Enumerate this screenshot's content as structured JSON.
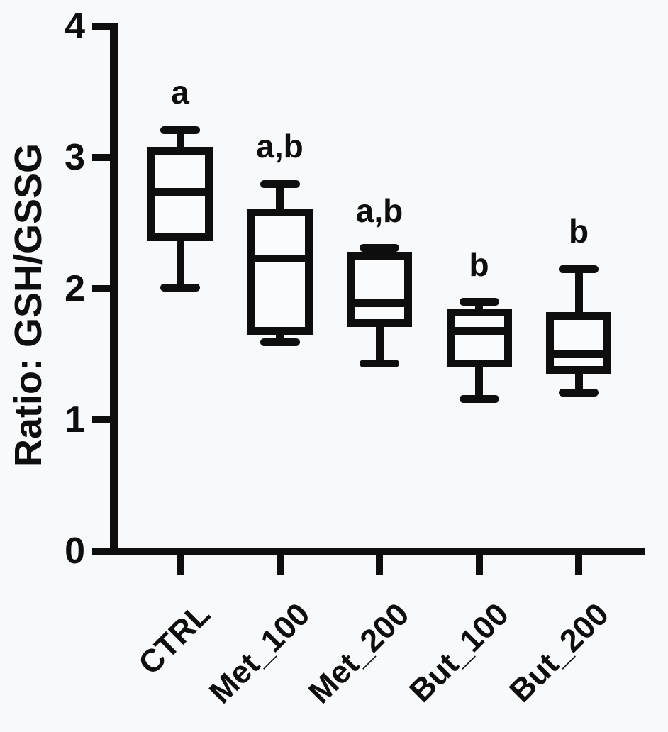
{
  "chart_data": {
    "type": "box",
    "title": "",
    "xlabel": "",
    "ylabel": "Ratio: GSH/GSSG",
    "ylim": [
      0,
      4
    ],
    "yticks": [
      0,
      1,
      2,
      3,
      4
    ],
    "grid": false,
    "legend": "none",
    "categories": [
      "CTRL",
      "Met_100",
      "Met_200",
      "But_100",
      "But_200"
    ],
    "series": [
      {
        "name": "CTRL",
        "annotation": "a",
        "min": 2.01,
        "q1": 2.39,
        "median": 2.74,
        "q3": 3.05,
        "max": 3.21
      },
      {
        "name": "Met_100",
        "annotation": "a,b",
        "min": 1.59,
        "q1": 1.68,
        "median": 2.23,
        "q3": 2.58,
        "max": 2.8
      },
      {
        "name": "Met_200",
        "annotation": "a,b",
        "min": 1.43,
        "q1": 1.74,
        "median": 1.89,
        "q3": 2.25,
        "max": 2.31
      },
      {
        "name": "But_100",
        "annotation": "b",
        "min": 1.16,
        "q1": 1.43,
        "median": 1.68,
        "q3": 1.82,
        "max": 1.9
      },
      {
        "name": "But_200",
        "annotation": "b",
        "min": 1.21,
        "q1": 1.38,
        "median": 1.5,
        "q3": 1.79,
        "max": 2.15
      }
    ],
    "colors": {
      "ink": "#0e0e0e",
      "background": "#f8f9fb",
      "box_fill": "#fafbfc"
    }
  }
}
